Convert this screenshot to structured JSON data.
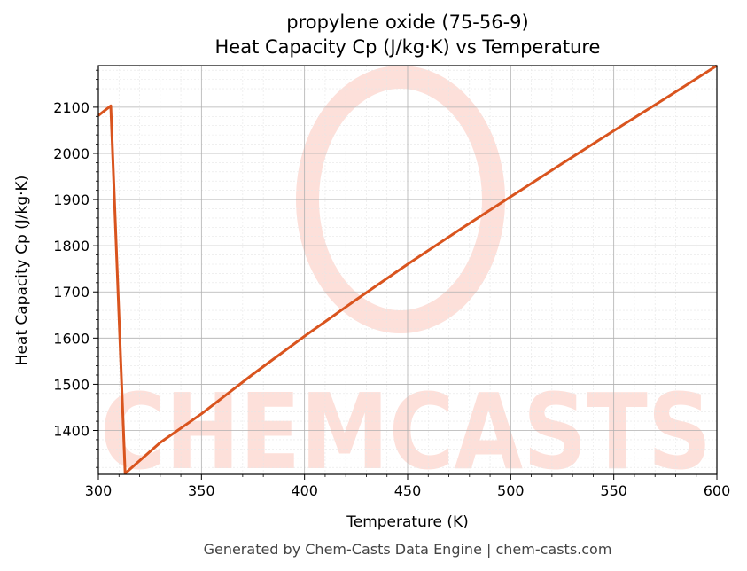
{
  "chart_data": {
    "type": "line",
    "title": "propylene oxide (75-56-9)",
    "subtitle": "Heat Capacity Cp (J/kg·K) vs Temperature",
    "xlabel": "Temperature (K)",
    "ylabel": "Heat Capacity Cp (J/kg·K)",
    "xlim": [
      300,
      600
    ],
    "ylim": [
      1305,
      2190
    ],
    "x_ticks": [
      300,
      350,
      400,
      450,
      500,
      550,
      600
    ],
    "y_ticks": [
      1400,
      1500,
      1600,
      1700,
      1800,
      1900,
      2000,
      2100
    ],
    "grid": true,
    "line_color": "#d9541e",
    "series": [
      {
        "x": [
          300,
          306,
          313,
          330,
          350,
          375,
          400,
          425,
          450,
          475,
          500,
          525,
          550,
          575,
          600
        ],
        "y": [
          2082,
          2103,
          1307,
          1374,
          1436,
          1522,
          1604,
          1683,
          1760,
          1834,
          1906,
          1978,
          2049,
          2119,
          2190
        ]
      }
    ]
  },
  "watermark": {
    "text": "CHEMCASTS",
    "color": "#fde0da"
  },
  "footer": "Generated by Chem-Casts Data Engine | chem-casts.com"
}
